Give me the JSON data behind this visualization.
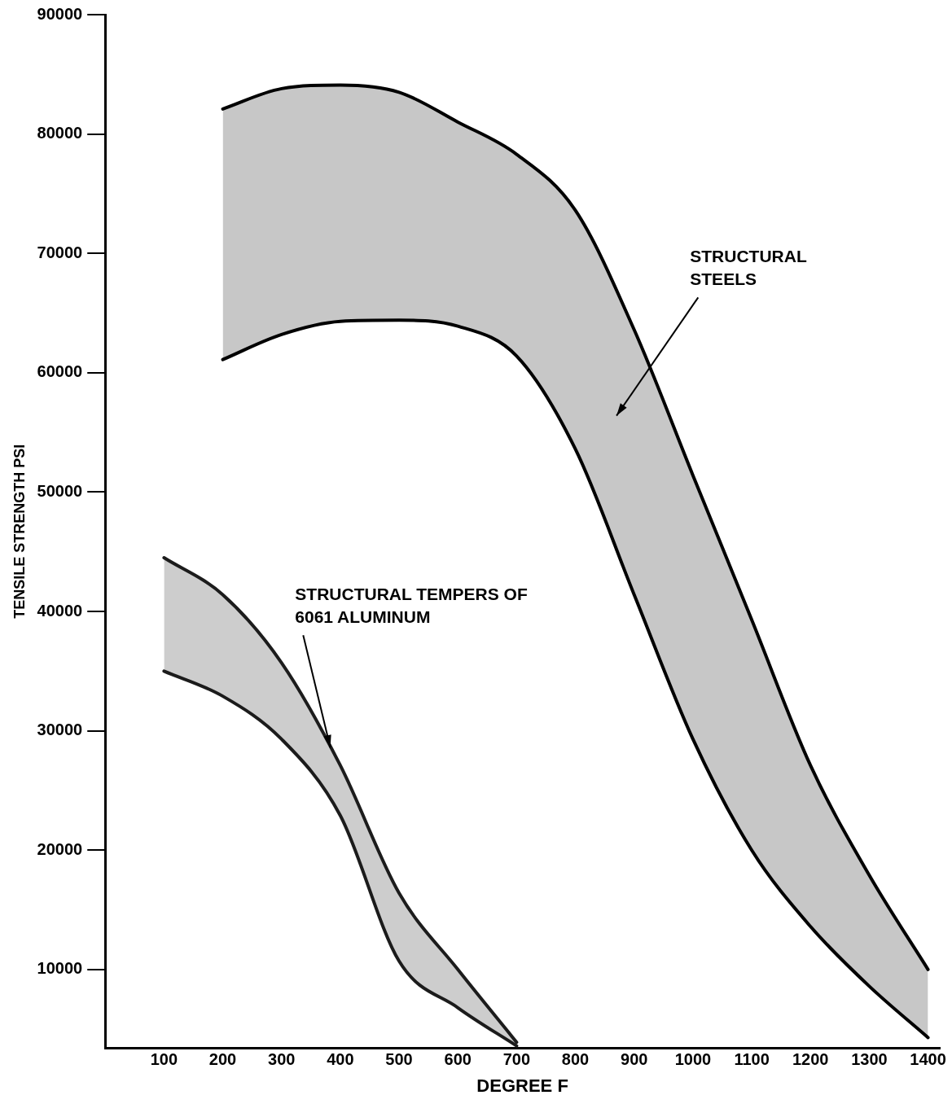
{
  "chart_data": {
    "type": "area",
    "xlabel": "DEGREE F",
    "ylabel": "TENSILE STRENGTH PSI",
    "xlim": [
      0,
      1420
    ],
    "xticks": [
      100,
      200,
      300,
      400,
      500,
      600,
      700,
      800,
      900,
      1000,
      1100,
      1200,
      1300,
      1400
    ],
    "ylim": [
      3400,
      90000
    ],
    "yticks": [
      10000,
      20000,
      30000,
      40000,
      50000,
      60000,
      70000,
      80000,
      90000
    ],
    "grid": false,
    "legend": false,
    "marker": "none",
    "line_style": "solid",
    "series": [
      {
        "type": "line",
        "color": "#000000",
        "x": [
          200,
          300,
          400,
          500,
          600,
          700,
          800,
          900,
          1000,
          1100,
          1200,
          1300,
          1400
        ],
        "values": [
          61100,
          63200,
          64300,
          64400,
          63900,
          61400,
          53600,
          41400,
          29300,
          20000,
          13600,
          8600,
          4300
        ]
      },
      {
        "color": "#000000",
        "x": [
          200,
          300,
          400,
          500,
          600,
          700,
          800,
          900,
          1000,
          1100,
          1200,
          1300,
          1400
        ],
        "values": [
          82100,
          83800,
          84100,
          83500,
          81000,
          78300,
          73600,
          63600,
          51400,
          39300,
          27100,
          17900,
          10000
        ]
      },
      {
        "type": "line",
        "color": "#1c1c1c",
        "x": [
          100,
          200,
          300,
          400,
          500,
          600,
          700
        ],
        "values": [
          35000,
          32900,
          29300,
          22900,
          10700,
          6800,
          3600
        ]
      },
      {
        "color": "#1c1c1c",
        "x": [
          100,
          200,
          300,
          400,
          500,
          600,
          700
        ],
        "values": [
          44500,
          41400,
          35700,
          27100,
          16400,
          10000,
          3900
        ]
      }
    ],
    "annotations": [
      "STRUCTURAL STEELS",
      {
        "text": "STRUCTURAL TEMPERS OF 6061 ALUMINUM",
        "x": 383,
        "y": 28600
      }
    ]
  }
}
